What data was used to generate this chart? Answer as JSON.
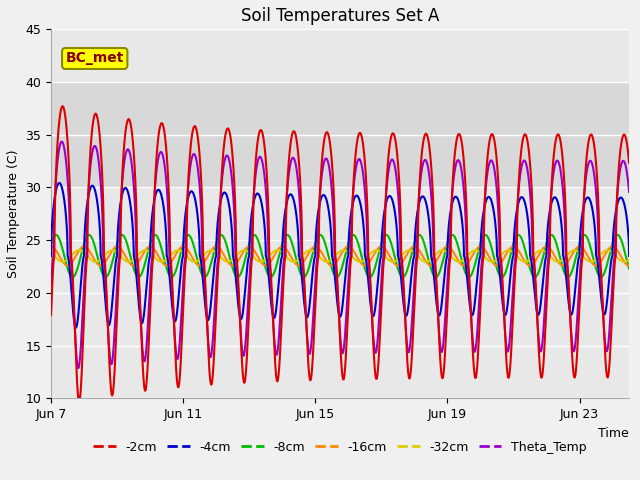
{
  "title": "Soil Temperatures Set A",
  "xlabel": "Time",
  "ylabel": "Soil Temperature (C)",
  "ylim": [
    10,
    45
  ],
  "xlim_days": [
    0,
    17.5
  ],
  "x_ticks_days": [
    0,
    4,
    8,
    12,
    16
  ],
  "x_tick_labels": [
    "Jun 7",
    "Jun 11",
    "Jun 15",
    "Jun 19",
    "Jun 23"
  ],
  "y_ticks": [
    10,
    15,
    20,
    25,
    30,
    35,
    40,
    45
  ],
  "colors": {
    "-2cm": "#dd0000",
    "-4cm": "#0000cc",
    "-8cm": "#00bb00",
    "-16cm": "#ff8800",
    "-32cm": "#ddcc00",
    "Theta_Temp": "#9900cc"
  },
  "legend_labels": [
    "-2cm",
    "-4cm",
    "-8cm",
    "-16cm",
    "-32cm",
    "Theta_Temp"
  ],
  "annotation_text": "BC_met",
  "background_color": "#f0f0f0",
  "plot_bg_color": "#e8e8e8",
  "hspan_low": 30,
  "hspan_high": 40,
  "hspan_color": "#d8d8d8",
  "mean_temp": 23.5,
  "period_days": 1.0,
  "lw": 1.5
}
